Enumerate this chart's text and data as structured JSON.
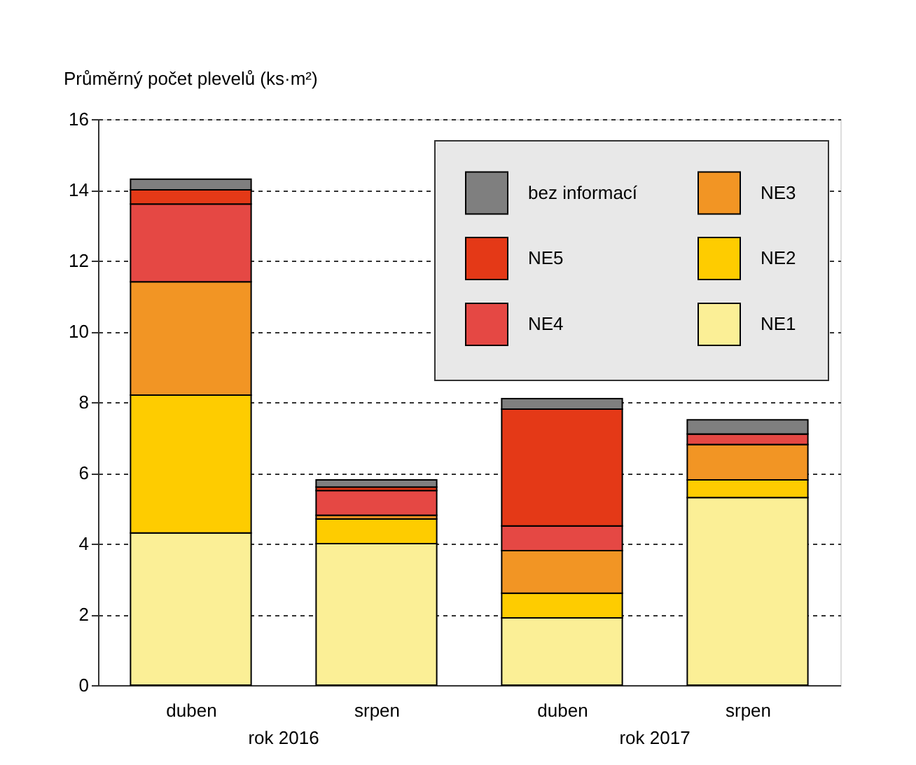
{
  "chart_data": {
    "type": "bar",
    "stacked": true,
    "ylabel": "Průměrný počet plevelů (ks·m²)",
    "categories": [
      "duben",
      "srpen",
      "duben",
      "srpen"
    ],
    "annotations": [
      "rok 2016",
      "rok 2017"
    ],
    "series": [
      {
        "name": "NE1",
        "color": "#fbef96",
        "values": [
          4.3,
          4.0,
          1.9,
          5.3
        ]
      },
      {
        "name": "NE2",
        "color": "#fecc00",
        "values": [
          3.9,
          0.7,
          0.7,
          0.5
        ]
      },
      {
        "name": "NE3",
        "color": "#f29524",
        "values": [
          3.2,
          0.1,
          1.2,
          1.0
        ]
      },
      {
        "name": "NE4",
        "color": "#e54844",
        "values": [
          2.2,
          0.7,
          0.7,
          0.3
        ]
      },
      {
        "name": "NE5",
        "color": "#e43917",
        "values": [
          0.4,
          0.1,
          3.3,
          0
        ]
      },
      {
        "name": "bez informací",
        "color": "#7f7f7f",
        "values": [
          0.3,
          0.2,
          0.3,
          0.4
        ]
      }
    ],
    "ylim": [
      0,
      16
    ],
    "yticks": [
      0,
      2,
      4,
      6,
      8,
      10,
      12,
      14,
      16
    ],
    "grid": "y",
    "legend": "top right"
  }
}
